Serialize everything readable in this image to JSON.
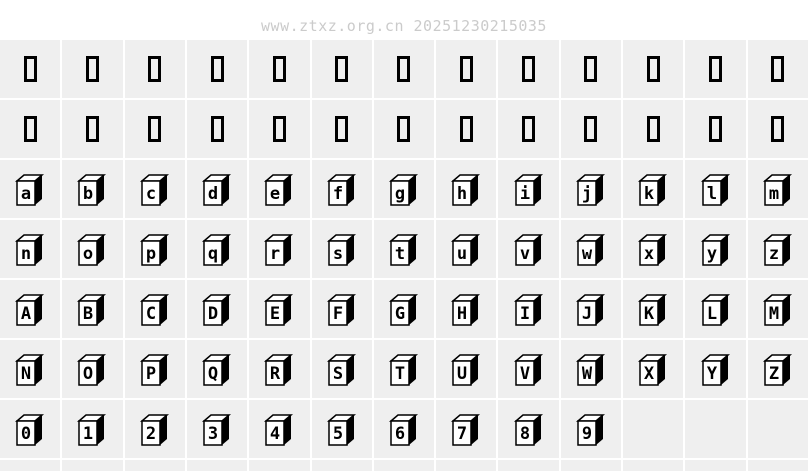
{
  "watermark": "www.ztxz.org.cn 20251230215035",
  "colors": {
    "page_bg": "#ffffff",
    "cell_bg": "#efefef",
    "glyph_ink": "#000000",
    "glyph_face": "#ffffff",
    "watermark_text": "#cbcbcb"
  },
  "glyph_grid": {
    "columns": 13,
    "rows": [
      {
        "style": "missing",
        "cells": [
          "□",
          "□",
          "□",
          "□",
          "□",
          "□",
          "□",
          "□",
          "□",
          "□",
          "□",
          "□",
          "□"
        ]
      },
      {
        "style": "missing",
        "cells": [
          "□",
          "□",
          "□",
          "□",
          "□",
          "□",
          "□",
          "□",
          "□",
          "□",
          "□",
          "□",
          "□"
        ]
      },
      {
        "style": "block3d",
        "cells": [
          "a",
          "b",
          "c",
          "d",
          "e",
          "f",
          "g",
          "h",
          "i",
          "j",
          "k",
          "l",
          "m"
        ]
      },
      {
        "style": "block3d",
        "cells": [
          "n",
          "o",
          "p",
          "q",
          "r",
          "s",
          "t",
          "u",
          "v",
          "w",
          "x",
          "y",
          "z"
        ]
      },
      {
        "style": "block3d",
        "cells": [
          "A",
          "B",
          "C",
          "D",
          "E",
          "F",
          "G",
          "H",
          "I",
          "J",
          "K",
          "L",
          "M"
        ]
      },
      {
        "style": "block3d",
        "cells": [
          "N",
          "O",
          "P",
          "Q",
          "R",
          "S",
          "T",
          "U",
          "V",
          "W",
          "X",
          "Y",
          "Z"
        ]
      },
      {
        "style": "block3d",
        "cells": [
          "0",
          "1",
          "2",
          "3",
          "4",
          "5",
          "6",
          "7",
          "8",
          "9",
          "",
          "",
          ""
        ]
      },
      {
        "style": "partial",
        "cells": [
          "",
          "",
          "",
          "",
          "",
          "",
          "",
          "",
          "",
          "",
          "",
          "",
          ""
        ]
      }
    ]
  }
}
